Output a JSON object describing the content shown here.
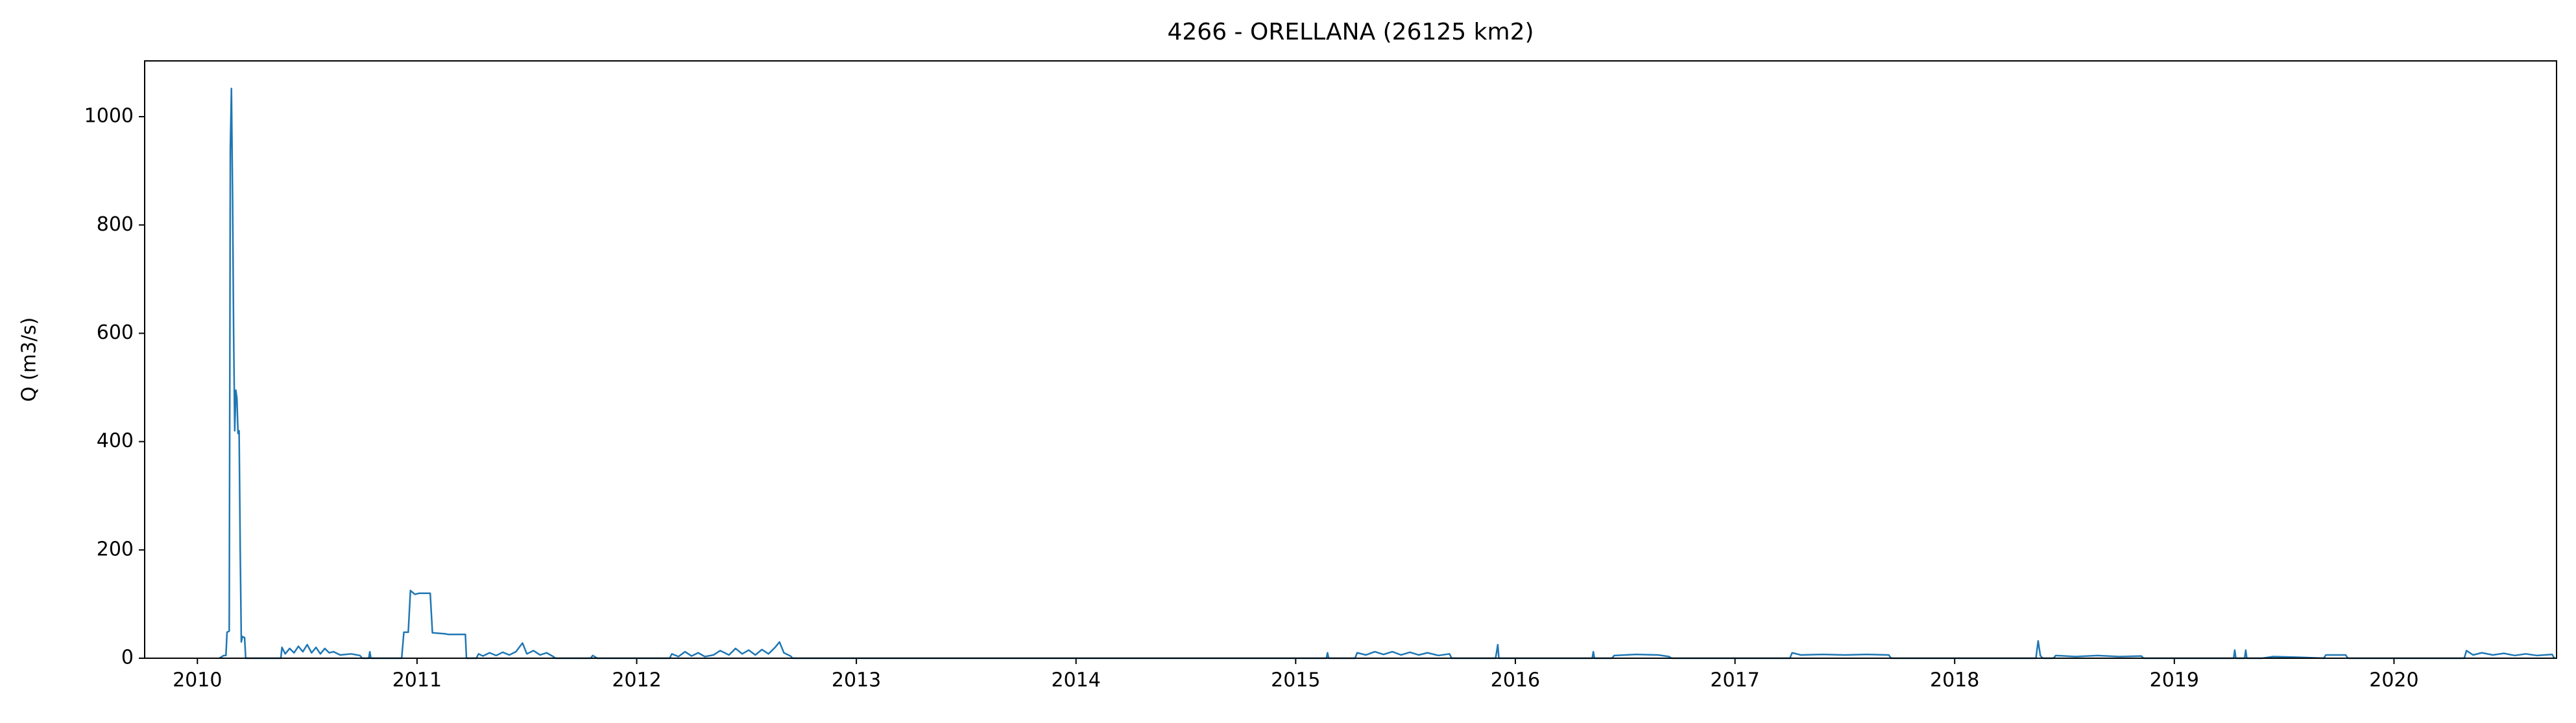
{
  "chart_data": {
    "type": "line",
    "title": "4266 - ORELLANA (26125 km2)",
    "y_label": "Q (m3/s)",
    "color": "#1f77b4",
    "xlim": [
      2009.76,
      2020.74
    ],
    "xticks": [
      2010,
      2011,
      2012,
      2013,
      2014,
      2015,
      2016,
      2017,
      2018,
      2019,
      2020
    ],
    "ylim": [
      0,
      1103
    ],
    "yticks": [
      0,
      200,
      400,
      600,
      800,
      1000
    ],
    "grid": false,
    "x": [
      2010.1,
      2010.12,
      2010.13,
      2010.135,
      2010.145,
      2010.15,
      2010.155,
      2010.16,
      2010.165,
      2010.17,
      2010.175,
      2010.18,
      2010.185,
      2010.19,
      2010.195,
      2010.2,
      2010.205,
      2010.215,
      2010.22,
      2010.38,
      2010.385,
      2010.4,
      2010.42,
      2010.44,
      2010.46,
      2010.48,
      2010.5,
      2010.52,
      2010.54,
      2010.56,
      2010.58,
      2010.6,
      2010.62,
      2010.65,
      2010.7,
      2010.74,
      2010.75,
      2010.78,
      2010.785,
      2010.79,
      2010.93,
      2010.94,
      2010.96,
      2010.97,
      2010.99,
      2011.01,
      2011.06,
      2011.07,
      2011.13,
      2011.14,
      2011.22,
      2011.225,
      2011.27,
      2011.28,
      2011.3,
      2011.33,
      2011.36,
      2011.39,
      2011.42,
      2011.45,
      2011.48,
      2011.5,
      2011.53,
      2011.56,
      2011.59,
      2011.62,
      2011.63,
      2011.79,
      2011.8,
      2011.82,
      2012.15,
      2012.16,
      2012.19,
      2012.22,
      2012.25,
      2012.28,
      2012.31,
      2012.35,
      2012.38,
      2012.42,
      2012.45,
      2012.48,
      2012.51,
      2012.54,
      2012.57,
      2012.6,
      2012.63,
      2012.65,
      2012.67,
      2012.7,
      2012.71,
      2015.14,
      2015.145,
      2015.15,
      2015.27,
      2015.28,
      2015.32,
      2015.36,
      2015.4,
      2015.44,
      2015.48,
      2015.52,
      2015.56,
      2015.6,
      2015.65,
      2015.7,
      2015.71,
      2015.91,
      2015.915,
      2015.92,
      2015.925,
      2016.35,
      2016.355,
      2016.36,
      2016.44,
      2016.45,
      2016.55,
      2016.65,
      2016.7,
      2016.71,
      2017.25,
      2017.26,
      2017.3,
      2017.4,
      2017.5,
      2017.6,
      2017.7,
      2017.71,
      2018.37,
      2018.38,
      2018.39,
      2018.4,
      2018.45,
      2018.46,
      2018.55,
      2018.65,
      2018.75,
      2018.85,
      2018.86,
      2019.27,
      2019.275,
      2019.28,
      2019.32,
      2019.325,
      2019.33,
      2019.4,
      2019.45,
      2019.55,
      2019.68,
      2019.69,
      2019.78,
      2019.79,
      2020.32,
      2020.33,
      2020.36,
      2020.4,
      2020.45,
      2020.5,
      2020.55,
      2020.6,
      2020.65,
      2020.72,
      2020.73
    ],
    "values": [
      0,
      5,
      5,
      48,
      50,
      940,
      1052,
      860,
      600,
      420,
      495,
      480,
      415,
      420,
      200,
      30,
      40,
      38,
      0,
      0,
      20,
      8,
      18,
      10,
      22,
      12,
      25,
      10,
      20,
      8,
      18,
      10,
      12,
      6,
      8,
      5,
      0,
      0,
      12,
      0,
      0,
      48,
      48,
      125,
      118,
      120,
      120,
      47,
      45,
      44,
      44,
      0,
      0,
      8,
      4,
      10,
      5,
      11,
      6,
      12,
      28,
      8,
      14,
      6,
      10,
      3,
      0,
      0,
      5,
      0,
      0,
      8,
      3,
      12,
      4,
      10,
      3,
      6,
      14,
      6,
      18,
      8,
      15,
      6,
      16,
      8,
      20,
      30,
      10,
      4,
      0,
      0,
      10,
      0,
      0,
      10,
      6,
      12,
      7,
      12,
      6,
      11,
      6,
      10,
      5,
      8,
      0,
      0,
      12,
      25,
      0,
      0,
      12,
      0,
      0,
      5,
      7,
      6,
      3,
      0,
      0,
      10,
      6,
      7,
      6,
      7,
      6,
      0,
      0,
      32,
      5,
      0,
      0,
      5,
      3,
      5,
      3,
      4,
      0,
      0,
      15,
      0,
      0,
      15,
      0,
      0,
      3,
      2,
      0,
      6,
      6,
      0,
      0,
      14,
      6,
      10,
      6,
      9,
      5,
      8,
      5,
      7,
      0
    ]
  }
}
